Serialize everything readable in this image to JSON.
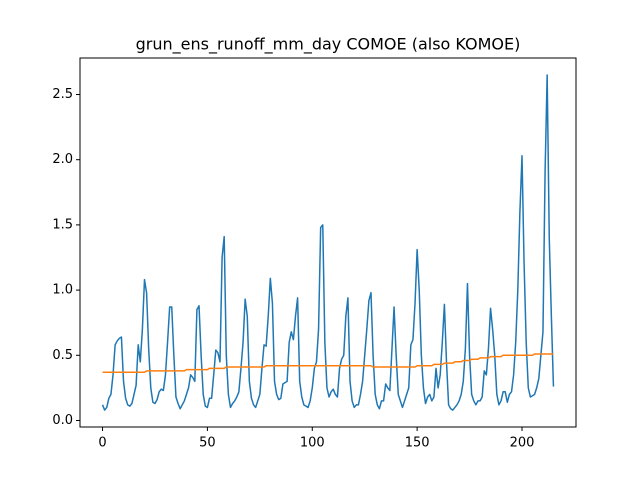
{
  "chart_data": {
    "type": "line",
    "title": "grun_ens_runoff_mm_day COMOE (also KOMOE)",
    "x": [
      0,
      1,
      2,
      3,
      4,
      5,
      6,
      7,
      8,
      9,
      10,
      11,
      12,
      13,
      14,
      15,
      16,
      17,
      18,
      19,
      20,
      21,
      22,
      23,
      24,
      25,
      26,
      27,
      28,
      29,
      30,
      31,
      32,
      33,
      34,
      35,
      36,
      37,
      38,
      39,
      40,
      41,
      42,
      43,
      44,
      45,
      46,
      47,
      48,
      49,
      50,
      51,
      52,
      53,
      54,
      55,
      56,
      57,
      58,
      59,
      60,
      61,
      62,
      63,
      64,
      65,
      66,
      67,
      68,
      69,
      70,
      71,
      72,
      73,
      74,
      75,
      76,
      77,
      78,
      79,
      80,
      81,
      82,
      83,
      84,
      85,
      86,
      87,
      88,
      89,
      90,
      91,
      92,
      93,
      94,
      95,
      96,
      97,
      98,
      99,
      100,
      101,
      102,
      103,
      104,
      105,
      106,
      107,
      108,
      109,
      110,
      111,
      112,
      113,
      114,
      115,
      116,
      117,
      118,
      119,
      120,
      121,
      122,
      123,
      124,
      125,
      126,
      127,
      128,
      129,
      130,
      131,
      132,
      133,
      134,
      135,
      136,
      137,
      138,
      139,
      140,
      141,
      142,
      143,
      144,
      145,
      146,
      147,
      148,
      149,
      150,
      151,
      152,
      153,
      154,
      155,
      156,
      157,
      158,
      159,
      160,
      161,
      162,
      163,
      164,
      165,
      166,
      167,
      168,
      169,
      170,
      171,
      172,
      173,
      174,
      175,
      176,
      177,
      178,
      179,
      180,
      181,
      182,
      183,
      184,
      185,
      186,
      187,
      188,
      189,
      190,
      191,
      192,
      193,
      194,
      195,
      196,
      197,
      198,
      199,
      200,
      201,
      202,
      203,
      204,
      205,
      206,
      207,
      208,
      209,
      210,
      211,
      212,
      213,
      214,
      215
    ],
    "series": [
      {
        "color": "#1f77b4",
        "values": [
          0.12,
          0.08,
          0.1,
          0.17,
          0.2,
          0.35,
          0.58,
          0.61,
          0.63,
          0.64,
          0.3,
          0.17,
          0.12,
          0.11,
          0.13,
          0.2,
          0.27,
          0.58,
          0.45,
          0.7,
          1.08,
          0.98,
          0.55,
          0.25,
          0.14,
          0.13,
          0.16,
          0.22,
          0.24,
          0.23,
          0.35,
          0.6,
          0.87,
          0.87,
          0.5,
          0.18,
          0.13,
          0.09,
          0.12,
          0.15,
          0.2,
          0.25,
          0.35,
          0.33,
          0.3,
          0.85,
          0.88,
          0.5,
          0.2,
          0.11,
          0.1,
          0.17,
          0.17,
          0.35,
          0.54,
          0.52,
          0.45,
          1.25,
          1.41,
          0.5,
          0.2,
          0.1,
          0.13,
          0.15,
          0.18,
          0.22,
          0.4,
          0.6,
          0.93,
          0.8,
          0.3,
          0.17,
          0.12,
          0.1,
          0.15,
          0.2,
          0.4,
          0.58,
          0.57,
          0.8,
          1.09,
          0.9,
          0.3,
          0.2,
          0.16,
          0.17,
          0.28,
          0.29,
          0.3,
          0.6,
          0.68,
          0.62,
          0.8,
          0.94,
          0.3,
          0.18,
          0.12,
          0.11,
          0.1,
          0.15,
          0.25,
          0.4,
          0.45,
          0.7,
          1.48,
          1.5,
          0.6,
          0.25,
          0.18,
          0.22,
          0.24,
          0.2,
          0.18,
          0.4,
          0.47,
          0.5,
          0.8,
          0.94,
          0.3,
          0.15,
          0.1,
          0.12,
          0.12,
          0.2,
          0.3,
          0.5,
          0.7,
          0.92,
          0.98,
          0.5,
          0.2,
          0.12,
          0.09,
          0.15,
          0.15,
          0.28,
          0.25,
          0.23,
          0.55,
          0.87,
          0.5,
          0.2,
          0.15,
          0.1,
          0.15,
          0.2,
          0.25,
          0.58,
          0.62,
          0.9,
          1.31,
          1.0,
          0.5,
          0.25,
          0.13,
          0.18,
          0.2,
          0.15,
          0.18,
          0.4,
          0.25,
          0.35,
          0.6,
          0.89,
          0.45,
          0.12,
          0.09,
          0.08,
          0.1,
          0.12,
          0.15,
          0.2,
          0.3,
          0.55,
          1.05,
          0.5,
          0.2,
          0.15,
          0.12,
          0.15,
          0.15,
          0.18,
          0.38,
          0.35,
          0.55,
          0.86,
          0.7,
          0.5,
          0.2,
          0.12,
          0.15,
          0.22,
          0.22,
          0.14,
          0.2,
          0.22,
          0.35,
          0.6,
          1.0,
          1.6,
          2.03,
          1.2,
          0.6,
          0.25,
          0.18,
          0.19,
          0.2,
          0.25,
          0.32,
          0.5,
          0.68,
          1.9,
          2.65,
          1.4,
          0.8,
          0.26
        ]
      },
      {
        "color": "#ff7f0e",
        "values": [
          0.37,
          0.37,
          0.37,
          0.37,
          0.37,
          0.37,
          0.37,
          0.37,
          0.37,
          0.37,
          0.37,
          0.37,
          0.37,
          0.37,
          0.37,
          0.37,
          0.37,
          0.37,
          0.37,
          0.37,
          0.37,
          0.38,
          0.38,
          0.38,
          0.38,
          0.38,
          0.38,
          0.38,
          0.38,
          0.38,
          0.38,
          0.38,
          0.38,
          0.38,
          0.38,
          0.38,
          0.38,
          0.38,
          0.38,
          0.38,
          0.39,
          0.39,
          0.39,
          0.39,
          0.39,
          0.39,
          0.39,
          0.39,
          0.39,
          0.39,
          0.39,
          0.4,
          0.4,
          0.4,
          0.4,
          0.4,
          0.4,
          0.4,
          0.4,
          0.41,
          0.41,
          0.41,
          0.41,
          0.41,
          0.41,
          0.41,
          0.41,
          0.41,
          0.41,
          0.41,
          0.41,
          0.41,
          0.41,
          0.41,
          0.41,
          0.41,
          0.41,
          0.41,
          0.42,
          0.42,
          0.42,
          0.42,
          0.42,
          0.42,
          0.42,
          0.42,
          0.42,
          0.42,
          0.42,
          0.42,
          0.42,
          0.42,
          0.42,
          0.42,
          0.42,
          0.42,
          0.42,
          0.42,
          0.42,
          0.42,
          0.42,
          0.42,
          0.42,
          0.42,
          0.42,
          0.42,
          0.42,
          0.42,
          0.42,
          0.42,
          0.42,
          0.42,
          0.42,
          0.42,
          0.42,
          0.42,
          0.42,
          0.42,
          0.42,
          0.42,
          0.42,
          0.42,
          0.42,
          0.42,
          0.42,
          0.42,
          0.42,
          0.42,
          0.42,
          0.41,
          0.41,
          0.41,
          0.41,
          0.41,
          0.41,
          0.41,
          0.41,
          0.41,
          0.41,
          0.41,
          0.41,
          0.41,
          0.41,
          0.41,
          0.41,
          0.41,
          0.41,
          0.41,
          0.41,
          0.41,
          0.42,
          0.42,
          0.42,
          0.42,
          0.42,
          0.42,
          0.42,
          0.42,
          0.43,
          0.43,
          0.43,
          0.43,
          0.43,
          0.44,
          0.44,
          0.44,
          0.44,
          0.44,
          0.45,
          0.45,
          0.45,
          0.45,
          0.46,
          0.46,
          0.46,
          0.46,
          0.47,
          0.47,
          0.47,
          0.47,
          0.48,
          0.48,
          0.48,
          0.48,
          0.48,
          0.49,
          0.49,
          0.49,
          0.49,
          0.49,
          0.49,
          0.5,
          0.5,
          0.5,
          0.5,
          0.5,
          0.5,
          0.5,
          0.5,
          0.5,
          0.5,
          0.5,
          0.5,
          0.5,
          0.5,
          0.5,
          0.51,
          0.51,
          0.51,
          0.51,
          0.51,
          0.51,
          0.51,
          0.51,
          0.51,
          0.51
        ]
      }
    ],
    "xlim": [
      -10.75,
      225.75
    ],
    "xticks": [
      0,
      50,
      100,
      150,
      200
    ],
    "ylim": [
      -0.05,
      2.78
    ],
    "yticks": [
      {
        "value": 0,
        "label": "0.0"
      },
      0.5,
      {
        "value": 1,
        "label": "1.0"
      },
      1.5,
      {
        "value": 2,
        "label": "2.0"
      },
      2.5
    ]
  }
}
